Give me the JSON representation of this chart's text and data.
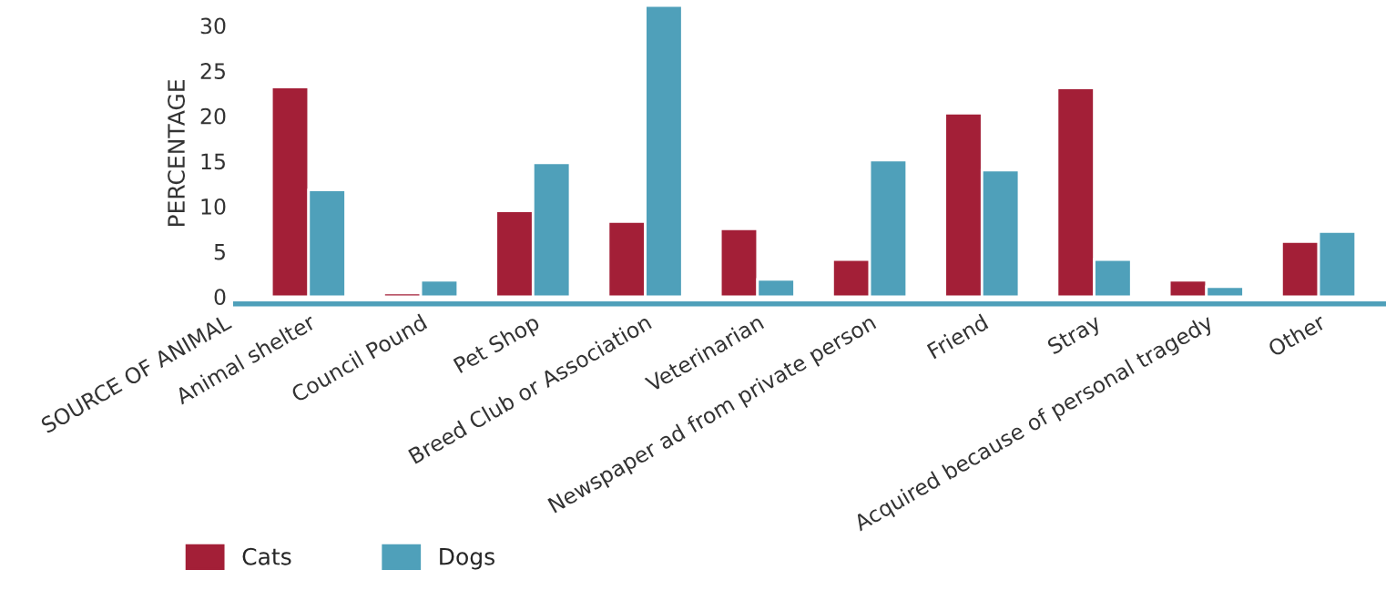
{
  "chart_data": {
    "type": "bar",
    "xlabel": "SOURCE OF ANIMAL",
    "ylabel": "PERCENTAGE",
    "categories": [
      "Animal shelter",
      "Council Pound",
      "Pet Shop",
      "Breed Club or Association",
      "Veterinarian",
      "Newspaper ad from private person",
      "Friend",
      "Stray",
      "Acquired because of personal tragedy",
      "Other"
    ],
    "series": [
      {
        "name": "Cats",
        "color": "#a31f37",
        "values": [
          23.2,
          0.4,
          9.5,
          8.3,
          7.5,
          4.1,
          20.3,
          23.1,
          1.8,
          6.1
        ]
      },
      {
        "name": "Dogs",
        "color": "#4fa0ba",
        "values": [
          11.8,
          1.8,
          14.8,
          32.2,
          1.9,
          15.1,
          14.0,
          4.1,
          1.1,
          7.2
        ]
      }
    ],
    "ylim": [
      -0.8,
      32.5
    ],
    "yticks": [
      0,
      5,
      10,
      15,
      20,
      25,
      30
    ],
    "grid": false,
    "legend": "bottom left"
  }
}
